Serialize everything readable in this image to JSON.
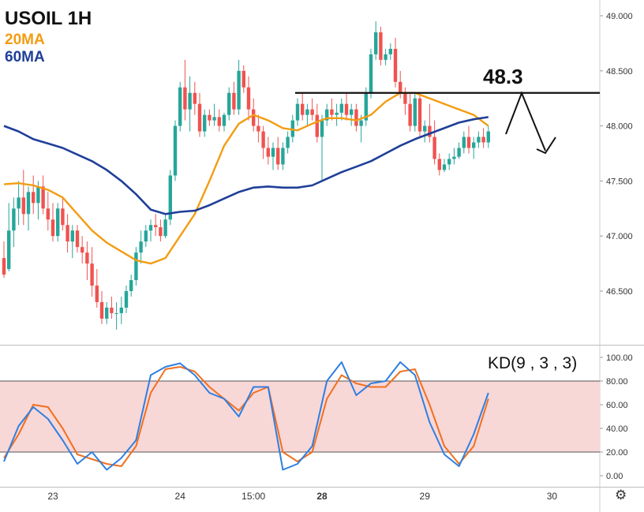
{
  "legend": {
    "title": "USOIL 1H",
    "ma20_label": "20MA",
    "ma60_label": "60MA"
  },
  "annotation": {
    "level_label": "48.3",
    "level": 48.3
  },
  "kd": {
    "title": "KD(9 , 3 , 3)",
    "band": [
      20,
      80
    ]
  },
  "colors": {
    "up": "#26a69a",
    "down": "#ef5350",
    "ma20": "#f39c12",
    "ma60": "#1f3f99",
    "k": "#2f7fe0",
    "d": "#f07020",
    "band": "#f8d7d7"
  },
  "icons": {
    "settings": "gear-icon"
  },
  "chart_data": [
    {
      "type": "candlestick",
      "title": "USOIL 1H",
      "ylim": [
        46.15,
        49.1
      ],
      "yticks": [
        46.5,
        47.0,
        47.5,
        48.0,
        48.5,
        49.0
      ],
      "ytick_labels": [
        "46.500",
        "47.000",
        "47.500",
        "48.000",
        "48.500",
        "49.000"
      ],
      "x_ticks": [
        {
          "label": "23",
          "bar": 10,
          "bold": false
        },
        {
          "label": "24",
          "bar": 36,
          "bold": false
        },
        {
          "label": "15:00",
          "bar": 51,
          "bold": false
        },
        {
          "label": "28",
          "bar": 65,
          "bold": true
        },
        {
          "label": "29",
          "bar": 86,
          "bold": false
        },
        {
          "label": "30",
          "bar": 112,
          "bold": false
        }
      ],
      "ohlc": [
        [
          46.8,
          46.95,
          46.62,
          46.65
        ],
        [
          46.7,
          47.3,
          46.68,
          47.05
        ],
        [
          47.05,
          47.35,
          46.9,
          47.25
        ],
        [
          47.25,
          47.5,
          47.1,
          47.35
        ],
        [
          47.35,
          47.6,
          47.1,
          47.2
        ],
        [
          47.2,
          47.45,
          47.05,
          47.4
        ],
        [
          47.4,
          47.55,
          47.2,
          47.3
        ],
        [
          47.3,
          47.5,
          47.15,
          47.45
        ],
        [
          47.45,
          47.55,
          47.2,
          47.25
        ],
        [
          47.25,
          47.4,
          47.05,
          47.15
        ],
        [
          47.15,
          47.3,
          46.95,
          47.0
        ],
        [
          47.0,
          47.3,
          46.95,
          47.25
        ],
        [
          47.25,
          47.35,
          47.05,
          47.1
        ],
        [
          47.1,
          47.2,
          46.85,
          46.95
        ],
        [
          46.95,
          47.1,
          46.8,
          47.05
        ],
        [
          47.05,
          47.1,
          46.85,
          46.9
        ],
        [
          46.9,
          47.0,
          46.75,
          46.85
        ],
        [
          46.85,
          46.95,
          46.6,
          46.75
        ],
        [
          46.75,
          46.9,
          46.45,
          46.55
        ],
        [
          46.55,
          46.7,
          46.35,
          46.4
        ],
        [
          46.4,
          46.5,
          46.2,
          46.25
        ],
        [
          46.25,
          46.4,
          46.2,
          46.35
        ],
        [
          46.35,
          46.45,
          46.25,
          46.3
        ],
        [
          46.3,
          46.4,
          46.15,
          46.3
        ],
        [
          46.3,
          46.45,
          46.2,
          46.35
        ],
        [
          46.35,
          46.55,
          46.3,
          46.5
        ],
        [
          46.5,
          46.65,
          46.45,
          46.6
        ],
        [
          46.6,
          46.9,
          46.55,
          46.85
        ],
        [
          46.85,
          47.05,
          46.75,
          46.95
        ],
        [
          46.95,
          47.1,
          46.9,
          47.05
        ],
        [
          47.05,
          47.15,
          46.95,
          47.1
        ],
        [
          47.1,
          47.2,
          47.0,
          47.08
        ],
        [
          47.08,
          47.15,
          46.95,
          47.0
        ],
        [
          47.0,
          47.2,
          46.98,
          47.15
        ],
        [
          47.15,
          47.6,
          47.1,
          47.55
        ],
        [
          47.55,
          48.05,
          47.5,
          48.0
        ],
        [
          48.0,
          48.4,
          47.95,
          48.35
        ],
        [
          48.35,
          48.6,
          48.05,
          48.15
        ],
        [
          48.15,
          48.45,
          47.95,
          48.3
        ],
        [
          48.3,
          48.4,
          48.1,
          48.2
        ],
        [
          48.2,
          48.3,
          47.9,
          47.95
        ],
        [
          47.95,
          48.15,
          47.9,
          48.1
        ],
        [
          48.1,
          48.15,
          48.0,
          48.05
        ],
        [
          48.05,
          48.2,
          48.0,
          48.08
        ],
        [
          48.08,
          48.15,
          47.95,
          48.0
        ],
        [
          48.0,
          48.12,
          47.95,
          48.1
        ],
        [
          48.1,
          48.35,
          48.05,
          48.3
        ],
        [
          48.3,
          48.4,
          48.1,
          48.15
        ],
        [
          48.15,
          48.6,
          48.1,
          48.5
        ],
        [
          48.5,
          48.55,
          48.3,
          48.35
        ],
        [
          48.35,
          48.45,
          48.05,
          48.15
        ],
        [
          48.15,
          48.25,
          47.95,
          48.0
        ],
        [
          48.0,
          48.1,
          47.85,
          47.95
        ],
        [
          47.95,
          48.0,
          47.7,
          47.8
        ],
        [
          47.8,
          47.9,
          47.65,
          47.72
        ],
        [
          47.72,
          47.85,
          47.6,
          47.8
        ],
        [
          47.8,
          47.9,
          47.6,
          47.65
        ],
        [
          47.65,
          47.85,
          47.6,
          47.8
        ],
        [
          47.8,
          47.95,
          47.75,
          47.9
        ],
        [
          47.9,
          48.1,
          47.85,
          48.05
        ],
        [
          48.05,
          48.25,
          48.0,
          48.2
        ],
        [
          48.2,
          48.3,
          48.05,
          48.1
        ],
        [
          48.1,
          48.2,
          48.0,
          48.15
        ],
        [
          48.15,
          48.25,
          48.05,
          48.1
        ],
        [
          48.1,
          48.2,
          47.85,
          47.9
        ],
        [
          47.9,
          48.1,
          47.5,
          48.05
        ],
        [
          48.05,
          48.2,
          48.0,
          48.15
        ],
        [
          48.15,
          48.25,
          48.05,
          48.1
        ],
        [
          48.1,
          48.2,
          48.0,
          48.12
        ],
        [
          48.12,
          48.25,
          48.05,
          48.2
        ],
        [
          48.2,
          48.3,
          48.05,
          48.1
        ],
        [
          48.1,
          48.2,
          48.0,
          48.15
        ],
        [
          48.15,
          48.2,
          47.95,
          48.0
        ],
        [
          48.0,
          48.1,
          47.85,
          48.05
        ],
        [
          48.05,
          48.35,
          48.0,
          48.3
        ],
        [
          48.3,
          48.7,
          48.25,
          48.65
        ],
        [
          48.65,
          48.95,
          48.6,
          48.85
        ],
        [
          48.85,
          48.9,
          48.55,
          48.6
        ],
        [
          48.6,
          48.7,
          48.55,
          48.65
        ],
        [
          48.65,
          48.75,
          48.6,
          48.7
        ],
        [
          48.7,
          48.8,
          48.35,
          48.4
        ],
        [
          48.4,
          48.5,
          48.25,
          48.3
        ],
        [
          48.3,
          48.35,
          48.1,
          48.2
        ],
        [
          48.2,
          48.3,
          47.95,
          48.0
        ],
        [
          48.0,
          48.3,
          47.95,
          48.25
        ],
        [
          48.25,
          48.3,
          47.9,
          47.95
        ],
        [
          47.95,
          48.05,
          47.85,
          48.0
        ],
        [
          48.0,
          48.2,
          47.85,
          47.9
        ],
        [
          47.9,
          48.05,
          47.65,
          47.7
        ],
        [
          47.7,
          47.75,
          47.55,
          47.6
        ],
        [
          47.6,
          47.7,
          47.58,
          47.65
        ],
        [
          47.65,
          47.75,
          47.6,
          47.7
        ],
        [
          47.7,
          47.8,
          47.65,
          47.72
        ],
        [
          47.72,
          47.85,
          47.7,
          47.8
        ],
        [
          47.8,
          47.95,
          47.75,
          47.9
        ],
        [
          47.9,
          48.0,
          47.75,
          47.8
        ],
        [
          47.8,
          47.9,
          47.7,
          47.85
        ],
        [
          47.85,
          47.95,
          47.8,
          47.9
        ],
        [
          47.9,
          47.98,
          47.8,
          47.85
        ],
        [
          47.85,
          48.0,
          47.8,
          47.95
        ]
      ],
      "series": [
        {
          "name": "20MA",
          "x": [
            0,
            3,
            6,
            9,
            12,
            15,
            18,
            21,
            24,
            27,
            30,
            33,
            36,
            39,
            42,
            45,
            48,
            51,
            54,
            57,
            60,
            63,
            66,
            69,
            72,
            75,
            78,
            81,
            84,
            87,
            90,
            93,
            96,
            99
          ],
          "values": [
            47.47,
            47.48,
            47.46,
            47.42,
            47.35,
            47.2,
            47.05,
            46.94,
            46.86,
            46.78,
            46.75,
            46.8,
            47.0,
            47.2,
            47.5,
            47.82,
            48.02,
            48.1,
            48.05,
            47.98,
            47.96,
            48.02,
            48.07,
            48.07,
            48.05,
            48.1,
            48.22,
            48.3,
            48.3,
            48.25,
            48.2,
            48.15,
            48.1,
            48.0
          ]
        },
        {
          "name": "60MA",
          "x": [
            0,
            3,
            6,
            9,
            12,
            15,
            18,
            21,
            24,
            27,
            30,
            33,
            36,
            39,
            42,
            45,
            48,
            51,
            54,
            57,
            60,
            63,
            66,
            69,
            72,
            75,
            78,
            81,
            84,
            87,
            90,
            93,
            96,
            99
          ],
          "values": [
            48.0,
            47.95,
            47.88,
            47.84,
            47.8,
            47.74,
            47.68,
            47.6,
            47.5,
            47.38,
            47.24,
            47.2,
            47.22,
            47.23,
            47.28,
            47.34,
            47.4,
            47.44,
            47.45,
            47.44,
            47.44,
            47.46,
            47.52,
            47.58,
            47.63,
            47.68,
            47.75,
            47.82,
            47.88,
            47.93,
            47.98,
            48.03,
            48.06,
            48.08
          ]
        }
      ],
      "resistance": {
        "value": 48.3,
        "label": "48.3"
      }
    },
    {
      "type": "line",
      "title": "KD(9 , 3 , 3)",
      "ylim": [
        -5,
        105
      ],
      "yticks": [
        0,
        20,
        40,
        60,
        80,
        100
      ],
      "ytick_labels": [
        "0.00",
        "20.00",
        "40.00",
        "60.00",
        "80.00",
        "100.00"
      ],
      "band": [
        20,
        80
      ],
      "series": [
        {
          "name": "K",
          "x": [
            0,
            3,
            6,
            9,
            12,
            15,
            18,
            21,
            24,
            27,
            30,
            33,
            36,
            39,
            42,
            45,
            48,
            51,
            54,
            57,
            60,
            63,
            66,
            69,
            72,
            75,
            78,
            81,
            84,
            87,
            90,
            93,
            96,
            99
          ],
          "values": [
            12,
            42,
            58,
            48,
            30,
            10,
            20,
            5,
            15,
            30,
            85,
            92,
            95,
            85,
            70,
            65,
            50,
            75,
            75,
            5,
            10,
            25,
            80,
            96,
            68,
            78,
            80,
            96,
            85,
            45,
            18,
            8,
            35,
            70
          ]
        },
        {
          "name": "D",
          "x": [
            0,
            3,
            6,
            9,
            12,
            15,
            18,
            21,
            24,
            27,
            30,
            33,
            36,
            39,
            42,
            45,
            48,
            51,
            54,
            57,
            60,
            63,
            66,
            69,
            72,
            75,
            78,
            81,
            84,
            87,
            90,
            93,
            96,
            99
          ],
          "values": [
            15,
            35,
            60,
            58,
            40,
            18,
            14,
            10,
            8,
            25,
            70,
            90,
            92,
            88,
            75,
            65,
            55,
            70,
            75,
            20,
            12,
            20,
            65,
            85,
            78,
            75,
            75,
            88,
            90,
            60,
            25,
            10,
            25,
            65
          ]
        }
      ]
    }
  ]
}
